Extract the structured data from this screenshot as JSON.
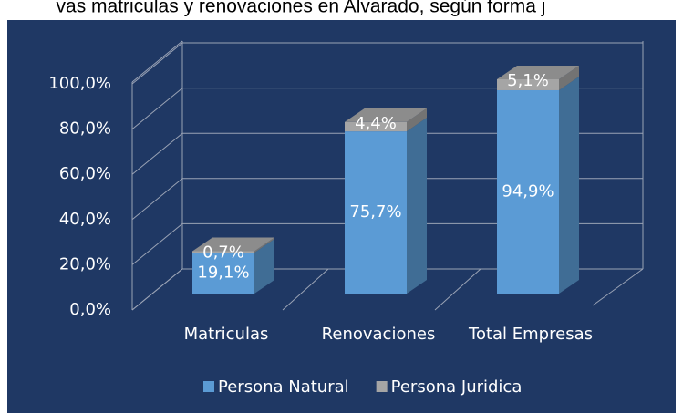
{
  "chart_data": {
    "type": "bar3d_stacked",
    "title": "vas matriculas y renovaciones en Alvarado, según forma j",
    "categories": [
      "Matriculas",
      "Renovaciones",
      "Total Empresas"
    ],
    "series": [
      {
        "name": "Persona Natural",
        "color": "#5b9bd5",
        "values": [
          19.1,
          75.7,
          94.9
        ],
        "value_labels": [
          "19,1%",
          "75,7%",
          "94,9%"
        ]
      },
      {
        "name": "Persona Juridica",
        "color": "#a5a5a5",
        "values": [
          0.7,
          4.4,
          5.1
        ],
        "value_labels": [
          "0,7%",
          "4,4%",
          "5,1%"
        ]
      }
    ],
    "ylim": [
      0,
      100
    ],
    "yticks": [
      {
        "value": 0,
        "label": "0,0%"
      },
      {
        "value": 20,
        "label": "20,0%"
      },
      {
        "value": 40,
        "label": "40,0%"
      },
      {
        "value": 60,
        "label": "60,0%"
      },
      {
        "value": 80,
        "label": "80,0%"
      },
      {
        "value": 100,
        "label": "100,0%"
      }
    ],
    "grid": true,
    "legend": "bottom"
  }
}
